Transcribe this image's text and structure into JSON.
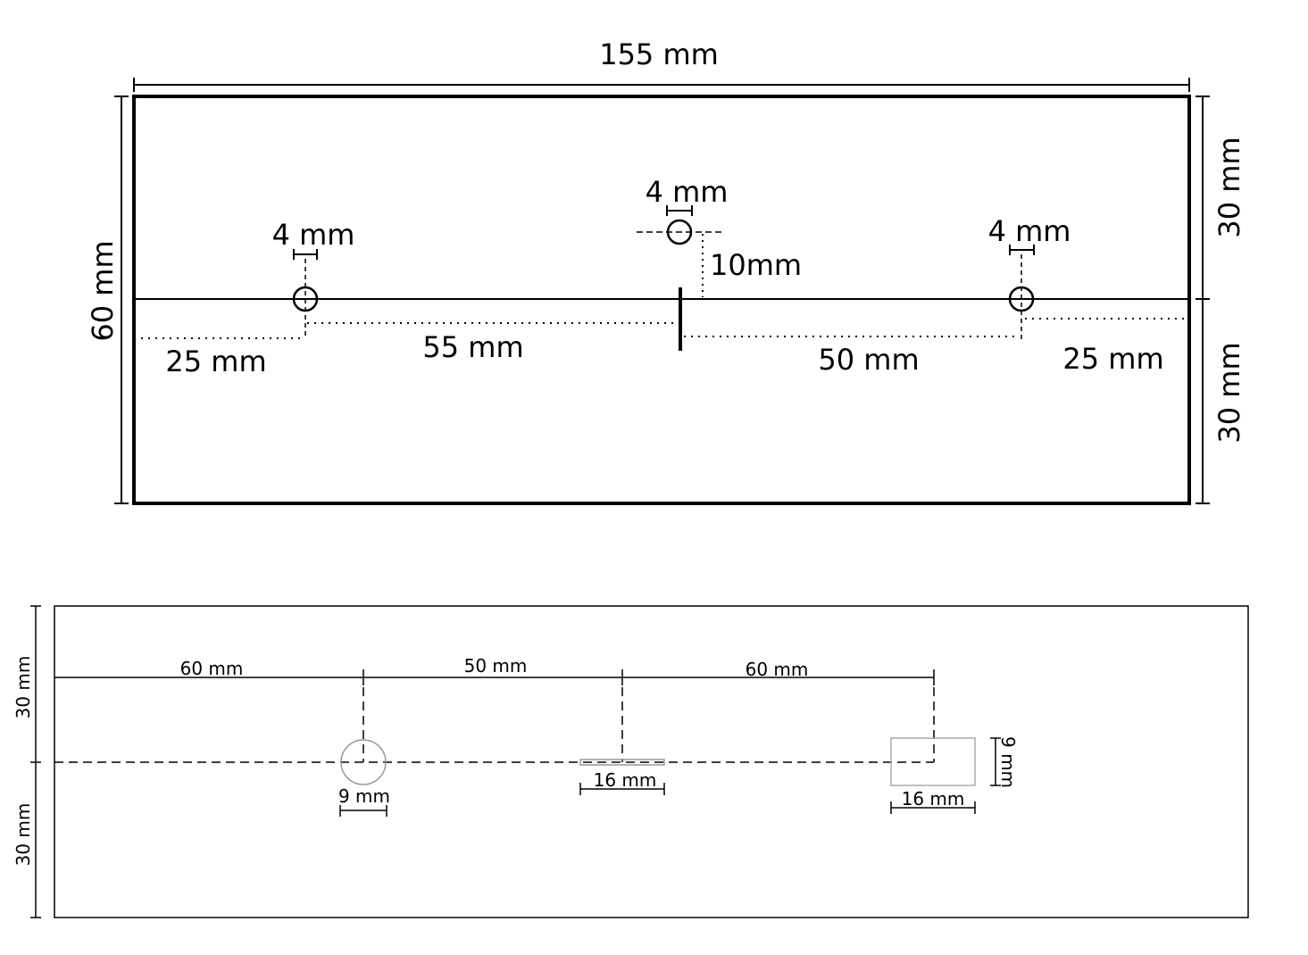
{
  "top_drawing": {
    "width_label": "155 mm",
    "height_label": "60 mm",
    "right_upper_label": "30 mm",
    "right_lower_label": "30 mm",
    "hole_left_label": "4 mm",
    "hole_center_label": "4 mm",
    "hole_right_label": "4 mm",
    "offset_label": "10mm",
    "left_edge_label": "25 mm",
    "left_to_center_label": "55 mm",
    "center_to_right_label": "50 mm",
    "right_edge_label": "25 mm"
  },
  "bottom_drawing": {
    "left_upper_label": "30 mm",
    "left_lower_label": "30 mm",
    "span_1_label": "60 mm",
    "span_2_label": "50 mm",
    "span_3_label": "60 mm",
    "circle_label": "9 mm",
    "slot_label": "16 mm",
    "rect_width_label": "16 mm",
    "rect_height_label": "9 mm"
  }
}
